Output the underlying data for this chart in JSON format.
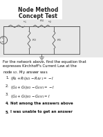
{
  "title_line1": "Node Method",
  "title_line2": "Concept Test",
  "bg_color": "#f0f0f0",
  "circuit_bg": "#d8d8d8",
  "text_color": "#000000",
  "title_fontsize": 5.5,
  "body_fontsize": 3.8,
  "option_fontsize": 3.8,
  "body_text_lines": [
    "For the network above, find the equation that",
    "expresses Kirchhoff's Current Law at the",
    "node $v_2$. My answer was"
  ],
  "options": [
    "$(R_4 + R_5)v_2 - R_4v_1 = -I$",
    "$(G_4 + G_5)v_2 - G_4v_1 = -I$",
    "$(G_4 + G_5)v_2 - G_4v_1 = I$",
    "Not among the answers above",
    "I was unable to get an answer"
  ],
  "bold_options": [
    4,
    5
  ]
}
